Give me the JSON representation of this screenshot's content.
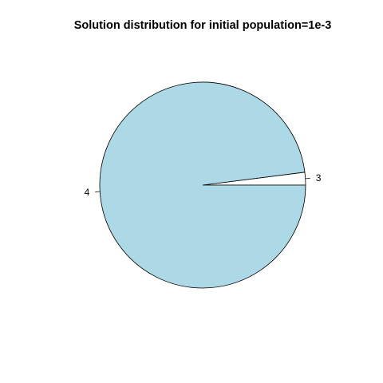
{
  "chart_data": {
    "type": "pie",
    "title": "Solution distribution for initial population=1e-3",
    "slices": [
      {
        "label": "3",
        "value": 2,
        "color": "#ffffff"
      },
      {
        "label": "4",
        "value": 98,
        "color": "#add8e6"
      }
    ]
  }
}
